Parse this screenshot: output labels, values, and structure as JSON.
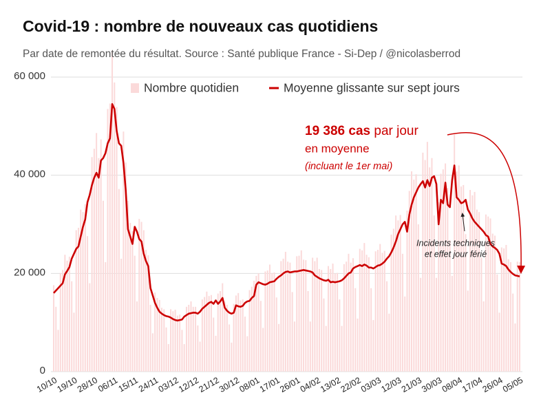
{
  "chart_data": {
    "type": "bar_line",
    "title": "Covid-19 : nombre de nouveaux cas quotidiens",
    "subtitle": "Par date de remontée du résultat. Source : Santé publique France - Si-Dep / @nicolasberrod",
    "categories": [
      "10/10",
      null,
      null,
      null,
      null,
      null,
      null,
      null,
      null,
      "19/10",
      null,
      null,
      null,
      null,
      null,
      null,
      null,
      null,
      "28/10",
      null,
      null,
      null,
      null,
      null,
      null,
      null,
      null,
      "06/11",
      null,
      null,
      null,
      null,
      null,
      null,
      null,
      null,
      "15/11",
      null,
      null,
      null,
      null,
      null,
      null,
      null,
      null,
      "24/11",
      null,
      null,
      null,
      null,
      null,
      null,
      null,
      null,
      "03/12",
      null,
      null,
      null,
      null,
      null,
      null,
      null,
      null,
      "12/12",
      null,
      null,
      null,
      null,
      null,
      null,
      null,
      null,
      "21/12",
      null,
      null,
      null,
      null,
      null,
      null,
      null,
      null,
      "30/12",
      null,
      null,
      null,
      null,
      null,
      null,
      null,
      null,
      "08/01",
      null,
      null,
      null,
      null,
      null,
      null,
      null,
      null,
      "17/01",
      null,
      null,
      null,
      null,
      null,
      null,
      null,
      null,
      "26/01",
      null,
      null,
      null,
      null,
      null,
      null,
      null,
      null,
      "04/02",
      null,
      null,
      null,
      null,
      null,
      null,
      null,
      null,
      "13/02",
      null,
      null,
      null,
      null,
      null,
      null,
      null,
      null,
      "22/02",
      null,
      null,
      null,
      null,
      null,
      null,
      null,
      null,
      "03/03",
      null,
      null,
      null,
      null,
      null,
      null,
      null,
      null,
      "12/03",
      null,
      null,
      null,
      null,
      null,
      null,
      null,
      null,
      "21/03",
      null,
      null,
      null,
      null,
      null,
      null,
      null,
      null,
      "30/03",
      null,
      null,
      null,
      null,
      null,
      null,
      null,
      null,
      "08/04",
      null,
      null,
      null,
      null,
      null,
      null,
      null,
      null,
      "17/04",
      null,
      null,
      null,
      null,
      null,
      null,
      null,
      null,
      "26/04",
      null,
      null,
      null,
      null,
      null,
      null,
      null,
      null,
      "05/05"
    ],
    "series": [
      {
        "name": "Nombre quotidien",
        "type": "bar",
        "color": "#fbdada",
        "values": [
          17600,
          13200,
          8500,
          20100,
          20700,
          23800,
          22600,
          23400,
          18400,
          12000,
          28800,
          29300,
          33000,
          32500,
          34100,
          27600,
          18000,
          43700,
          45400,
          48600,
          43500,
          47300,
          34800,
          22300,
          53500,
          54600,
          65400,
          58900,
          53900,
          37200,
          23000,
          48900,
          42600,
          34800,
          30300,
          28600,
          23600,
          14300,
          31100,
          30500,
          28800,
          24800,
          23700,
          13600,
          7800,
          16100,
          15000,
          14600,
          13000,
          12700,
          9000,
          5600,
          12700,
          12300,
          12600,
          11400,
          11600,
          8500,
          5600,
          13200,
          13600,
          14300,
          13200,
          13200,
          9400,
          6100,
          14700,
          15200,
          16300,
          15400,
          15600,
          11000,
          7300,
          15900,
          16400,
          18000,
          14300,
          13600,
          9600,
          5900,
          13800,
          15500,
          16000,
          14500,
          14700,
          11200,
          7200,
          16600,
          17300,
          18500,
          19500,
          20000,
          14400,
          8900,
          20400,
          20600,
          21800,
          20100,
          20200,
          15100,
          9700,
          22500,
          23000,
          24400,
          22400,
          22200,
          16200,
          10200,
          23500,
          23600,
          24700,
          22800,
          22700,
          16400,
          10200,
          23200,
          22500,
          23200,
          20900,
          20700,
          14900,
          9300,
          21500,
          20900,
          22000,
          20000,
          20100,
          14700,
          9300,
          21900,
          22400,
          24000,
          22200,
          23100,
          17000,
          10800,
          25000,
          24700,
          26200,
          23800,
          23300,
          17000,
          10500,
          24500,
          24800,
          26000,
          24200,
          24600,
          18400,
          11800,
          27900,
          29100,
          31800,
          30800,
          31900,
          24000,
          15300,
          32800,
          36800,
          40800,
          39100,
          40200,
          30000,
          19100,
          44600,
          43100,
          46800,
          41600,
          43500,
          31800,
          19100,
          34500,
          40300,
          41200,
          42400,
          37400,
          26800,
          19500,
          48300,
          40800,
          42000,
          37700,
          38000,
          28000,
          16500,
          37000,
          35900,
          36600,
          33000,
          32500,
          23200,
          14300,
          32000,
          31600,
          31200,
          28100,
          27700,
          19800,
          12000,
          25300,
          25100,
          25800,
          22900,
          22300,
          15900,
          9800,
          22400,
          22300
        ]
      },
      {
        "name": "Moyenne glissante sur sept jours",
        "type": "line",
        "color": "#cc0000",
        "values": [
          16000,
          16500,
          17000,
          17500,
          18000,
          19800,
          20500,
          21300,
          23000,
          24000,
          25000,
          25500,
          27500,
          29500,
          31000,
          34500,
          36000,
          38000,
          39500,
          40500,
          39500,
          43000,
          43500,
          44500,
          46500,
          47500,
          54500,
          53500,
          49000,
          46500,
          46000,
          42500,
          37000,
          29000,
          27500,
          26000,
          29500,
          28500,
          27000,
          26500,
          24000,
          22500,
          21500,
          17000,
          15500,
          14000,
          13000,
          12200,
          11800,
          11500,
          11300,
          11200,
          11000,
          10700,
          10500,
          10400,
          10500,
          10600,
          11200,
          11500,
          11800,
          11900,
          12000,
          12000,
          11800,
          12200,
          12800,
          13200,
          13600,
          14000,
          14200,
          13800,
          14500,
          13800,
          14300,
          15000,
          13000,
          12400,
          12000,
          11800,
          12000,
          13500,
          13300,
          13200,
          13400,
          14000,
          14300,
          14400,
          15000,
          15400,
          17700,
          18200,
          18000,
          17800,
          17700,
          17900,
          18200,
          18300,
          18400,
          18900,
          19300,
          19600,
          20000,
          20300,
          20400,
          20200,
          20300,
          20400,
          20400,
          20500,
          20600,
          20700,
          20600,
          20500,
          20400,
          20200,
          19600,
          19300,
          19000,
          18800,
          18600,
          18500,
          18700,
          18200,
          18300,
          18200,
          18300,
          18400,
          18600,
          19000,
          19500,
          20000,
          20200,
          21000,
          21300,
          21500,
          21700,
          21500,
          21800,
          21600,
          21200,
          21200,
          21000,
          21300,
          21600,
          21700,
          22000,
          22400,
          23000,
          23500,
          24300,
          25300,
          26500,
          28000,
          29000,
          30000,
          30500,
          28500,
          32000,
          34000,
          35500,
          36500,
          37500,
          38200,
          38800,
          37500,
          39000,
          37800,
          39500,
          39800,
          38200,
          30000,
          35000,
          34300,
          38500,
          34000,
          33500,
          39000,
          42000,
          35500,
          35000,
          34300,
          34500,
          35000,
          33000,
          32200,
          31200,
          30500,
          30000,
          29500,
          29000,
          28500,
          27800,
          27500,
          26000,
          25500,
          25200,
          24800,
          24000,
          22000,
          21800,
          21500,
          20800,
          20300,
          19900,
          19600,
          19500,
          19386
        ]
      }
    ],
    "ylim": [
      0,
      60000
    ],
    "yticks": [
      {
        "value": 0,
        "label": "0"
      },
      {
        "value": 20000,
        "label": "20 000"
      },
      {
        "value": 40000,
        "label": "40 000"
      },
      {
        "value": 60000,
        "label": "60 000"
      }
    ],
    "grid": true,
    "legend": "top",
    "annotations": {
      "highlight": "19 386 cas",
      "highlight_rest": " par jour",
      "line2": "en moyenne",
      "line3": "(incluant le 1er mai)",
      "note1": "Incidents techniques",
      "note2": "et effet jour férié"
    }
  }
}
